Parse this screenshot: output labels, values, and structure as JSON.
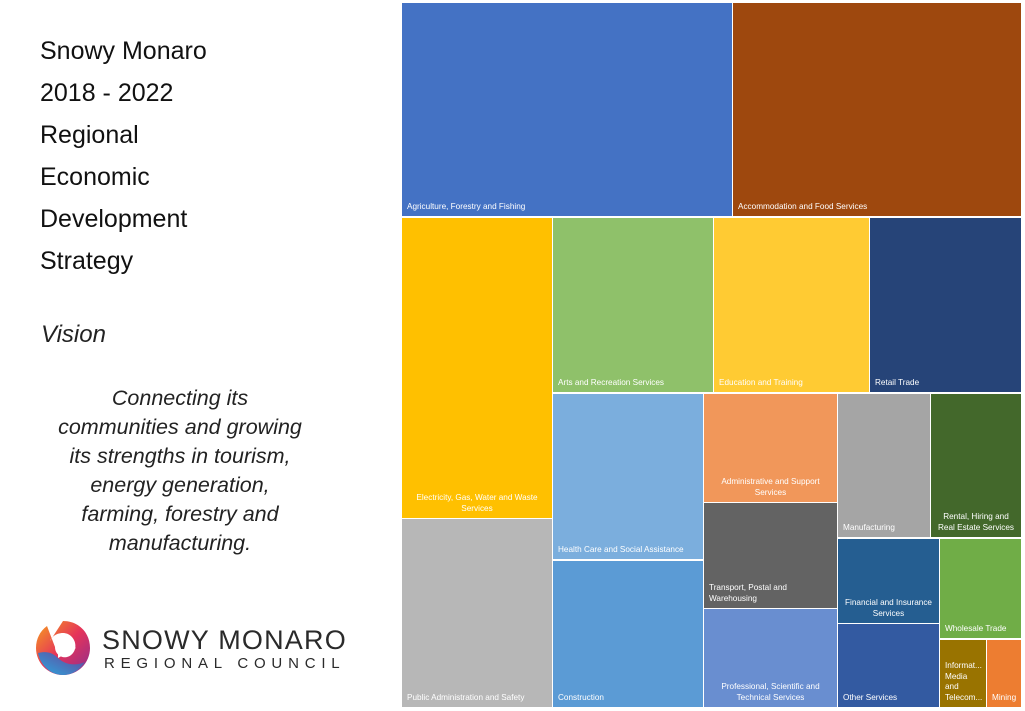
{
  "title_lines": [
    "Snowy Monaro",
    "2018 - 2022",
    "Regional",
    "Economic",
    "Development",
    "Strategy"
  ],
  "vision": {
    "label": "Vision",
    "lines": [
      "Connecting its",
      "communities and growing",
      "its strengths in tourism,",
      "energy generation,",
      "farming, forestry and",
      "manufacturing."
    ]
  },
  "logo": {
    "name": "SNOWY MONARO",
    "subtitle": "REGIONAL COUNCIL"
  },
  "chart_data": {
    "type": "treemap",
    "categories": [
      {
        "label": "Agriculture, Forestry and Fishing",
        "color": "#4472C4"
      },
      {
        "label": "Accommodation and Food Services",
        "color": "#9E480E"
      },
      {
        "label": "Electricity, Gas, Water and Waste Services",
        "color": "#FFC000"
      },
      {
        "label": "Arts and Recreation Services",
        "color": "#8FC16A"
      },
      {
        "label": "Education and Training",
        "color": "#FFCB33"
      },
      {
        "label": "Retail Trade",
        "color": "#264478"
      },
      {
        "label": "Health Care and Social Assistance",
        "color": "#7BAEDD"
      },
      {
        "label": "Administrative and Support Services",
        "color": "#F1975A"
      },
      {
        "label": "Manufacturing",
        "color": "#A5A5A5"
      },
      {
        "label": "Rental, Hiring and Real Estate Services",
        "color": "#43682B"
      },
      {
        "label": "Transport, Postal and Warehousing",
        "color": "#636363"
      },
      {
        "label": "Financial and Insurance Services",
        "color": "#255E91"
      },
      {
        "label": "Wholesale Trade",
        "color": "#70AD47"
      },
      {
        "label": "Public Administration and Safety",
        "color": "#B7B7B7"
      },
      {
        "label": "Construction",
        "color": "#5B9BD5"
      },
      {
        "label": "Professional, Scientific and Technical Services",
        "color": "#698ED0"
      },
      {
        "label": "Other Services",
        "color": "#335AA1"
      },
      {
        "label": "Informat... Media and Telecom...",
        "color": "#997300"
      },
      {
        "label": "Mining",
        "color": "#ED7D31"
      }
    ]
  }
}
